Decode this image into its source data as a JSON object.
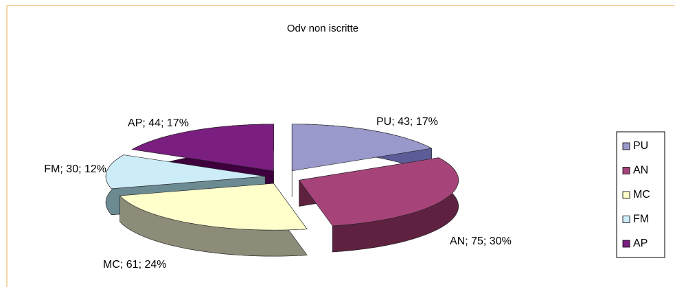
{
  "chart_data": {
    "type": "pie",
    "title": "Odv non iscritte",
    "categories": [
      "PU",
      "AN",
      "MC",
      "FM",
      "AP"
    ],
    "values": [
      43,
      75,
      61,
      30,
      44
    ],
    "value_labels": [
      "PU; 43; 17%",
      "AN; 75; 30%",
      "MC; 61; 24%",
      "FM; 30; 12%",
      "AP; 44; 17%"
    ],
    "colors": [
      "#9999cc",
      "#a6447a",
      "#ffffcc",
      "#ccecf8",
      "#7a1f80"
    ],
    "side_colors": [
      "#5c5c99",
      "#5e2240",
      "#8c8c78",
      "#6b8a92",
      "#3d003d"
    ],
    "legend": "right"
  }
}
